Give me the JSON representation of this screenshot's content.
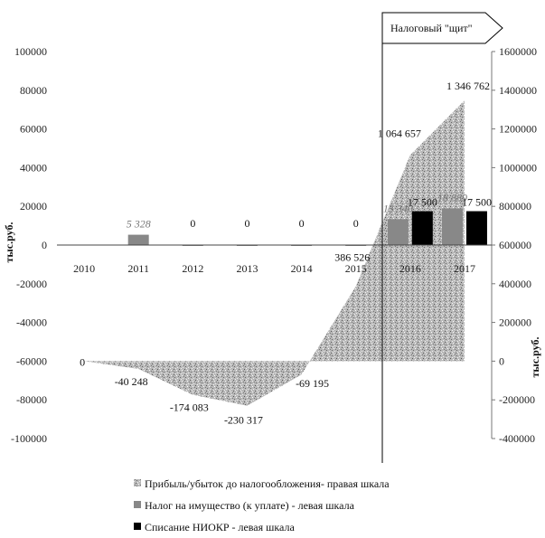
{
  "chart_data": {
    "type": "bar",
    "categories": [
      "2010",
      "2011",
      "2012",
      "2013",
      "2014",
      "2015",
      "2016",
      "2017"
    ],
    "shield_label": "Налоговый \"щит\"",
    "left_axis": {
      "label": "тыс.руб.",
      "min": -100000,
      "max": 100000,
      "step": 20000
    },
    "right_axis": {
      "label": "тыс.руб.",
      "min": -400000,
      "max": 1600000,
      "step": 200000
    },
    "series": [
      {
        "name": "Прибыль/убыток до налогообложения- правая шкала",
        "kind": "area",
        "axis": "right",
        "color": "#9a9a9a",
        "values": [
          0,
          -40248,
          -174083,
          -230317,
          -69195,
          386526,
          1064657,
          1346762
        ],
        "labels": [
          "0",
          "-40 248",
          "-174 083",
          "-230 317",
          "-69 195",
          "386 526",
          "1 064 657",
          "1 346 762"
        ]
      },
      {
        "name": "Налог на имущество (к уплате) - левая шкала",
        "kind": "bar",
        "axis": "left",
        "color": "#888888",
        "values": [
          null,
          5328,
          0,
          0,
          0,
          0,
          13340,
          18889
        ],
        "labels": [
          "",
          "5 328",
          "0",
          "0",
          "0",
          "0",
          "13 340",
          "18 889"
        ]
      },
      {
        "name": "Списание НИОКР - левая шкала",
        "kind": "bar",
        "axis": "left",
        "color": "#000000",
        "values": [
          null,
          null,
          null,
          null,
          null,
          null,
          17500,
          17500
        ],
        "labels": [
          "",
          "",
          "",
          "",
          "",
          "",
          "17 500",
          "17 500"
        ]
      }
    ],
    "legend_position": "bottom"
  }
}
